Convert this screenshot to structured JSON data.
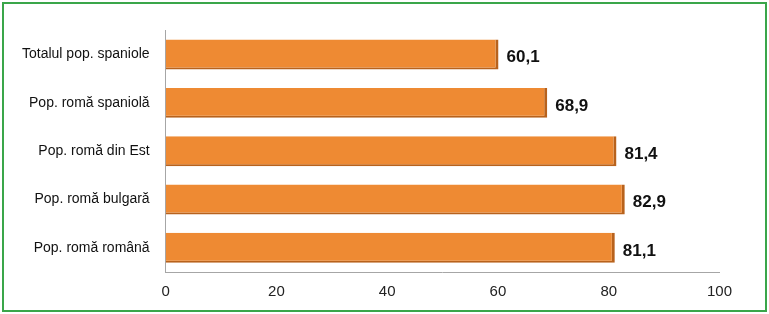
{
  "chart_data": {
    "type": "bar",
    "orientation": "horizontal",
    "categories": [
      "Totalul pop. spaniole",
      "Pop. romă spaniolă",
      "Pop. romă din Est",
      "Pop. romă bulgară",
      "Pop. romă română"
    ],
    "values": [
      60.1,
      68.9,
      81.4,
      82.9,
      81.1
    ],
    "value_labels": [
      "60,1",
      "68,9",
      "81,4",
      "82,9",
      "81,1"
    ],
    "color": "#ee8a33",
    "xlim": [
      0,
      100
    ],
    "xticks": [
      0,
      20,
      40,
      60,
      80,
      100
    ],
    "grid": false,
    "data_labels": true
  }
}
